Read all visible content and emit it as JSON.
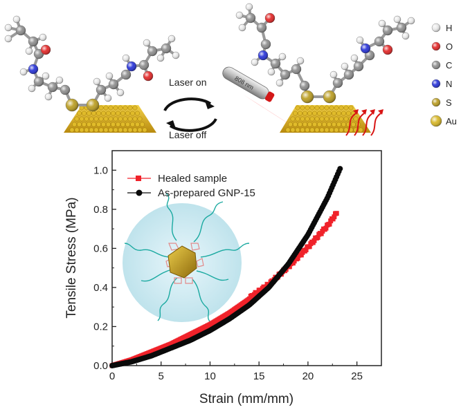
{
  "scheme": {
    "laser_on": "Laser on",
    "laser_off": "Laser off",
    "wavelength": "808 nm",
    "atom_legend": [
      {
        "label": "H",
        "color": "#e8e8e8",
        "icon": "hydrogen-atom-icon"
      },
      {
        "label": "O",
        "color": "#e21f1f",
        "icon": "oxygen-atom-icon"
      },
      {
        "label": "C",
        "color": "#8a8a8a",
        "icon": "carbon-atom-icon"
      },
      {
        "label": "N",
        "color": "#1f2bd6",
        "icon": "nitrogen-atom-icon"
      },
      {
        "label": "S",
        "color": "#b89a1a",
        "icon": "sulfur-atom-icon"
      },
      {
        "label": "Au",
        "color": "#d6b41e",
        "icon": "gold-atom-icon"
      }
    ]
  },
  "chart_data": {
    "type": "line",
    "title": "",
    "xlabel": "Strain (mm/mm)",
    "ylabel": "Tensile Stress (MPa)",
    "xlim": [
      0,
      27.5
    ],
    "ylim": [
      0,
      1.1
    ],
    "x_ticks": [
      0,
      5,
      10,
      15,
      20,
      25
    ],
    "x_tick_labels": [
      "0",
      "5",
      "10",
      "15",
      "20",
      "25"
    ],
    "y_ticks": [
      0.0,
      0.2,
      0.4,
      0.6,
      0.8,
      1.0
    ],
    "y_tick_labels": [
      "0.0",
      "0.2",
      "0.4",
      "0.6",
      "0.8",
      "1.0"
    ],
    "grid": false,
    "legend_position": "top-left",
    "series": [
      {
        "name": "Healed sample",
        "color": "#f0222a",
        "marker": "square",
        "x": [
          0,
          2,
          4,
          6,
          8,
          10,
          12,
          14,
          16,
          18,
          20,
          22,
          23
        ],
        "y": [
          0.0,
          0.03,
          0.07,
          0.11,
          0.16,
          0.21,
          0.27,
          0.34,
          0.41,
          0.5,
          0.6,
          0.71,
          0.78
        ]
      },
      {
        "name": "As-prepared GNP-15",
        "color": "#0a0a0a",
        "marker": "circle",
        "x": [
          0,
          2,
          4,
          6,
          8,
          10,
          12,
          14,
          16,
          18,
          20,
          22,
          23.3
        ],
        "y": [
          0.0,
          0.02,
          0.05,
          0.09,
          0.13,
          0.18,
          0.24,
          0.31,
          0.4,
          0.52,
          0.67,
          0.86,
          1.01
        ]
      }
    ]
  }
}
